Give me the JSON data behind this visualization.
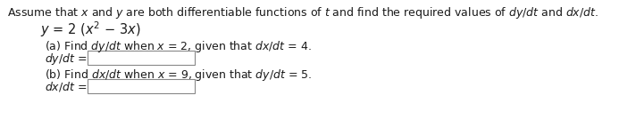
{
  "bg_color": "#ffffff",
  "text_color": "#1a1a1a",
  "italic_color": "#c0392b",
  "font_size_title": 9.0,
  "font_size_formula": 10.5,
  "font_size_body": 9.0,
  "line1": "Assume that $\\it{x}$ and $\\it{y}$ are both differentiable functions of $\\it{t}$ and find the required values of $\\it{dy/dt}$ and $\\it{dx/dt}$.",
  "line2_y": "$\\it{y}$ = 2 ($\\it{x}^2$ − 3$\\it{x}$)",
  "line_a": "(a) Find $\\it{dy/dt}$ when $\\it{x}$ = 2, given that $\\it{dx/dt}$ = 4.",
  "label_a": "$\\it{dy/dt}$ =",
  "line_b": "(b) Find $\\it{dx/dt}$ when $\\it{x}$ = 9, given that $\\it{dy/dt}$ = 5.",
  "label_b": "$\\it{dx/dt}$ ="
}
